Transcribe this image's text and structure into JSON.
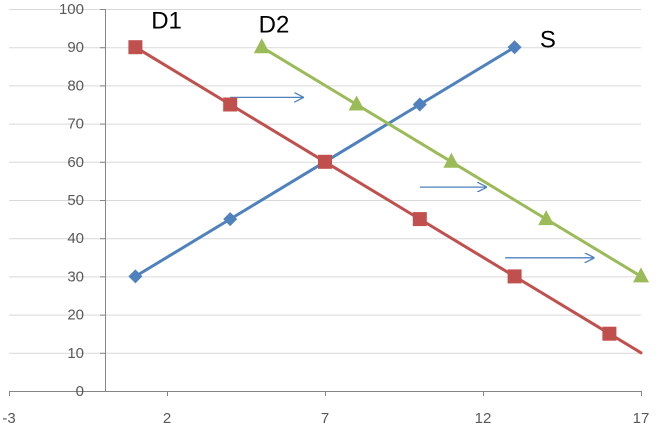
{
  "chart_data": {
    "type": "line",
    "title": "",
    "xlabel": "",
    "ylabel": "",
    "xlim": [
      -3,
      17
    ],
    "ylim": [
      0,
      100
    ],
    "xticks": [
      -3,
      2,
      7,
      12,
      17
    ],
    "yticks": [
      0,
      10,
      20,
      30,
      40,
      50,
      60,
      70,
      80,
      90,
      100
    ],
    "grid": "horizontal",
    "legend": "none",
    "series": [
      {
        "name": "S",
        "color": "#4F81BD",
        "marker": "diamond",
        "points": [
          [
            1,
            30
          ],
          [
            4,
            45
          ],
          [
            7,
            60
          ],
          [
            10,
            75
          ],
          [
            13,
            90
          ]
        ],
        "label_at": [
          13.8,
          92
        ]
      },
      {
        "name": "D1",
        "color": "#C0504D",
        "marker": "square",
        "points": [
          [
            1,
            90
          ],
          [
            4,
            75
          ],
          [
            7,
            60
          ],
          [
            10,
            45
          ],
          [
            13,
            30
          ],
          [
            16,
            15
          ],
          [
            17,
            10
          ]
        ],
        "marker_count": 6,
        "label_at": [
          1.5,
          97
        ]
      },
      {
        "name": "D2",
        "color": "#9BBB59",
        "marker": "triangle",
        "points": [
          [
            5,
            90
          ],
          [
            8,
            75
          ],
          [
            11,
            60
          ],
          [
            14,
            45
          ],
          [
            17,
            30
          ]
        ],
        "label_at": [
          4.9,
          96
        ]
      }
    ],
    "annotations": [
      {
        "type": "arrow",
        "color": "#4F81BD",
        "from": [
          4,
          77
        ],
        "to": [
          6.3,
          77
        ]
      },
      {
        "type": "arrow",
        "color": "#4F81BD",
        "from": [
          10,
          53.5
        ],
        "to": [
          12.1,
          53.5
        ]
      },
      {
        "type": "arrow",
        "color": "#4F81BD",
        "from": [
          12.7,
          35
        ],
        "to": [
          15.5,
          35
        ]
      }
    ]
  }
}
